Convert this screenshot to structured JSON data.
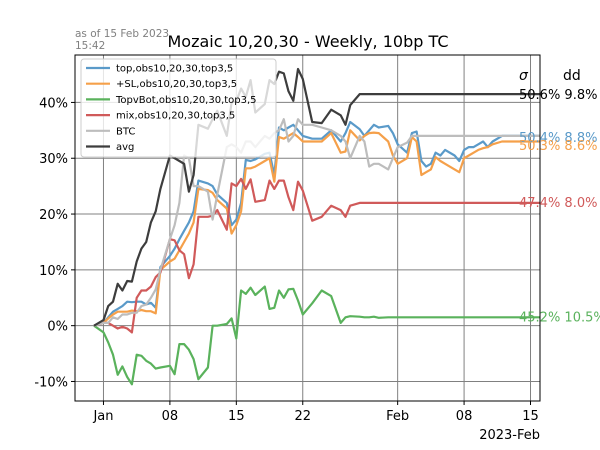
{
  "chart_data": {
    "type": "line",
    "title": "Mozaic 10,20,30 - Weekly, 10bp TC",
    "as_of_line1": "as of 15 Feb 2023",
    "as_of_line2": "15:42",
    "x_start": "2022-12-29",
    "x_end": "2023-02-16",
    "x_tick_dates": [
      "2023-01-01",
      "2023-01-08",
      "2023-01-15",
      "2023-01-22",
      "2023-02-01",
      "2023-02-08",
      "2023-02-15"
    ],
    "x_tick_labels": [
      "Jan",
      "08",
      "15",
      "22",
      "Feb",
      "08",
      "15"
    ],
    "x_offset_label": "2023-Feb",
    "ylim": [
      -13.5,
      48.5
    ],
    "y_ticks": [
      -10,
      0,
      10,
      20,
      30,
      40
    ],
    "y_tick_labels": [
      "-10%",
      "0%",
      "10%",
      "20%",
      "30%",
      "40%"
    ],
    "grid": true,
    "legend_position": "upper-left",
    "stats_header": {
      "sigma": "σ",
      "dd": "dd"
    },
    "x": [
      "2022-12-31 00:00",
      "2023-01-01 00:00",
      "2023-01-01 12:00",
      "2023-01-02 00:00",
      "2023-01-02 12:00",
      "2023-01-03 00:00",
      "2023-01-03 12:00",
      "2023-01-04 00:00",
      "2023-01-04 12:00",
      "2023-01-05 00:00",
      "2023-01-05 12:00",
      "2023-01-06 00:00",
      "2023-01-06 12:00",
      "2023-01-07 00:00",
      "2023-01-08 00:00",
      "2023-01-08 12:00",
      "2023-01-09 00:00",
      "2023-01-09 12:00",
      "2023-01-10 00:00",
      "2023-01-10 12:00",
      "2023-01-11 00:00",
      "2023-01-12 00:00",
      "2023-01-12 12:00",
      "2023-01-13 00:00",
      "2023-01-14 00:00",
      "2023-01-14 12:00",
      "2023-01-15 00:00",
      "2023-01-15 12:00",
      "2023-01-16 00:00",
      "2023-01-16 12:00",
      "2023-01-17 00:00",
      "2023-01-18 00:00",
      "2023-01-18 12:00",
      "2023-01-19 00:00",
      "2023-01-19 12:00",
      "2023-01-20 00:00",
      "2023-01-20 12:00",
      "2023-01-21 00:00",
      "2023-01-21 12:00",
      "2023-01-22 00:00",
      "2023-01-23 00:00",
      "2023-01-24 00:00",
      "2023-01-25 00:00",
      "2023-01-26 00:00",
      "2023-01-26 12:00",
      "2023-01-27 00:00",
      "2023-01-28 00:00",
      "2023-01-28 12:00",
      "2023-01-29 00:00",
      "2023-01-29 12:00",
      "2023-01-30 00:00",
      "2023-01-31 00:00",
      "2023-01-31 12:00",
      "2023-02-01 00:00",
      "2023-02-02 00:00",
      "2023-02-02 12:00",
      "2023-02-03 00:00",
      "2023-02-03 12:00",
      "2023-02-04 00:00",
      "2023-02-04 12:00",
      "2023-02-05 00:00",
      "2023-02-05 12:00",
      "2023-02-06 00:00",
      "2023-02-07 00:00",
      "2023-02-07 12:00",
      "2023-02-08 00:00",
      "2023-02-08 12:00",
      "2023-02-09 00:00",
      "2023-02-09 12:00",
      "2023-02-10 00:00",
      "2023-02-10 12:00",
      "2023-02-11 00:00",
      "2023-02-12 00:00",
      "2023-02-12 12:00",
      "2023-02-13 00:00",
      "2023-02-13 12:00",
      "2023-02-14 00:00",
      "2023-02-14 12:00",
      "2023-02-15 00:00",
      "2023-02-15 12:00",
      "2023-02-16 00:00"
    ],
    "series": [
      {
        "name": "top,obs10,20,30,top3,5",
        "color": "#5a9ac9",
        "values": [
          0,
          0.5,
          1.5,
          2.5,
          3,
          3.5,
          4.3,
          4.2,
          4.3,
          4.3,
          3.8,
          4.1,
          3.2,
          10.5,
          12.5,
          13.8,
          15.5,
          17,
          18.5,
          20.5,
          26,
          25.5,
          25,
          23.5,
          22,
          18,
          19,
          22,
          29.7,
          29.5,
          29.8,
          30.8,
          31,
          27,
          35.5,
          35,
          35.5,
          36,
          35,
          34,
          33.5,
          33.5,
          35,
          33,
          34.5,
          36.5,
          35.2,
          34,
          35,
          36,
          35.5,
          35.8,
          34.5,
          32.5,
          31,
          34.5,
          34.8,
          29.5,
          28.5,
          29,
          31,
          30.5,
          31.5,
          30.5,
          29.5,
          31.5,
          32,
          32,
          32.5,
          33,
          32,
          33,
          34,
          34,
          34,
          34,
          34,
          34,
          34,
          34,
          34
        ],
        "end_label": "50.4%  8.8%",
        "end_value": 33.8
      },
      {
        "name": "+SL,obs10,20,30,top3,5",
        "color": "#f5a04a",
        "values": [
          0,
          0.5,
          1.3,
          2,
          2.5,
          2.5,
          2.5,
          2.7,
          2.6,
          2.8,
          2.6,
          2.6,
          2.2,
          10,
          11.5,
          12,
          13.5,
          15,
          16.5,
          18.5,
          24.5,
          24.3,
          23.8,
          22.5,
          21,
          16.5,
          18,
          20.5,
          28.2,
          28.2,
          28.5,
          29.5,
          30,
          25.8,
          33.8,
          33.5,
          34,
          34.5,
          33.8,
          33,
          33,
          33,
          34.5,
          31,
          31.2,
          35,
          33.2,
          34,
          34.5,
          34.6,
          34.5,
          33,
          30.5,
          29,
          30,
          33.8,
          33,
          27,
          27.5,
          28,
          30.2,
          29.5,
          29,
          28,
          27.5,
          30,
          30.5,
          31,
          31.5,
          31.8,
          32,
          32.5,
          33,
          33,
          33,
          33,
          33,
          33,
          33,
          33,
          33
        ],
        "end_label": "50.3%  8.6%",
        "end_value": 32.4
      },
      {
        "name": "TopvBot,obs10,20,30,top3,5",
        "color": "#5ab25c",
        "values": [
          0,
          -1.2,
          -3,
          -5.2,
          -8.8,
          -7.3,
          -9.2,
          -10.5,
          -5.2,
          -5.4,
          -6.3,
          -6.8,
          -7.7,
          -7.5,
          -7.2,
          -8.7,
          -3.3,
          -3.3,
          -4.3,
          -6,
          -9.6,
          -7.5,
          0,
          0,
          0.3,
          1.3,
          -2.3,
          6.3,
          5.7,
          6.8,
          5.5,
          7,
          3,
          3.2,
          6.3,
          5,
          6.5,
          6.6,
          4.5,
          2,
          4,
          6.3,
          5.3,
          0.5,
          1.5,
          1.7,
          1.6,
          1.5,
          1.5,
          1.6,
          1.4,
          1.5,
          1.5,
          1.5,
          1.5,
          1.5,
          1.5,
          1.5,
          1.5,
          1.5,
          1.5,
          1.5,
          1.5,
          1.5,
          1.5,
          1.5,
          1.5,
          1.5,
          1.5,
          1.5,
          1.5,
          1.5,
          1.5,
          1.5,
          1.5,
          1.5,
          1.5,
          1.5,
          1.5,
          1.5,
          1.5
        ],
        "end_label": "45.2%  10.5%",
        "end_value": 1.6
      },
      {
        "name": "mix,obs10,20,30,top3,5",
        "color": "#d05a5a",
        "values": [
          0,
          0.5,
          0.5,
          0,
          -0.5,
          -0.2,
          -0.5,
          -1.2,
          5,
          6.3,
          6.3,
          7,
          8.7,
          9.5,
          15.5,
          15.3,
          13.5,
          12.8,
          8.5,
          11,
          19.5,
          19.5,
          19.7,
          20.7,
          17.2,
          25.5,
          25,
          26.3,
          24.5,
          26.2,
          22.2,
          22.5,
          26,
          24.5,
          26,
          26,
          23,
          20.7,
          25.8,
          24.2,
          18.8,
          19.5,
          21.5,
          20.7,
          19.5,
          21.5,
          22,
          22,
          22,
          22,
          22,
          22,
          22,
          22,
          22,
          22,
          22,
          22,
          22,
          22,
          22,
          22,
          22,
          22,
          22,
          22,
          22,
          22,
          22,
          22,
          22,
          22,
          22,
          22,
          22,
          22,
          22,
          22,
          22,
          22,
          22
        ],
        "end_label": "47.4%  8.0%",
        "end_value": 22.2
      },
      {
        "name": "BTC",
        "color": "#bdbdbd",
        "values": [
          0,
          0.5,
          0.5,
          1.5,
          1.2,
          2,
          2,
          2.3,
          2.3,
          3.5,
          3.8,
          5,
          6.5,
          10,
          15.5,
          18,
          22,
          30.5,
          30,
          25,
          25,
          24,
          19,
          23.5,
          32,
          32.5,
          32,
          31,
          33,
          33,
          32,
          34,
          33.5,
          34.5,
          35,
          37,
          33,
          34,
          37,
          36,
          36,
          35.5,
          35,
          34,
          33,
          30,
          34,
          33,
          28.5,
          29,
          29,
          28,
          30,
          32,
          32.8,
          34,
          34,
          34,
          34,
          34,
          34,
          34,
          34,
          34,
          34,
          34,
          34,
          34,
          34,
          34,
          34,
          34,
          34,
          34,
          34,
          34,
          34,
          34,
          34,
          34,
          34
        ],
        "end_label": "",
        "end_value": 34.8
      },
      {
        "name": "avg",
        "color": "#3d3d3d",
        "values": [
          0,
          1,
          3.5,
          4.3,
          7.5,
          6.3,
          8,
          7.9,
          11.5,
          13.8,
          15,
          18.5,
          20.5,
          24.5,
          30.5,
          30,
          29.5,
          29,
          24,
          27,
          36,
          35.3,
          37,
          38.5,
          34,
          40,
          40.2,
          42.5,
          41,
          44,
          38.2,
          39.7,
          44,
          43.3,
          45.5,
          45.2,
          42,
          40.3,
          46,
          44.2,
          36.5,
          36.3,
          38.7,
          37.7,
          36,
          39.5,
          41.5,
          41.5,
          41.5,
          41.5,
          41.5,
          41.5,
          41.5,
          41.5,
          41.5,
          41.5,
          41.5,
          41.5,
          41.5,
          41.5,
          41.5,
          41.5,
          41.5,
          41.5,
          41.5,
          41.5,
          41.5,
          41.5,
          41.5,
          41.5,
          41.5,
          41.5,
          41.5,
          41.5,
          41.5,
          41.5,
          41.5,
          41.5,
          41.5,
          41.5,
          41.5
        ],
        "end_label": "50.6%  9.8%",
        "end_value": 41.5
      }
    ]
  }
}
